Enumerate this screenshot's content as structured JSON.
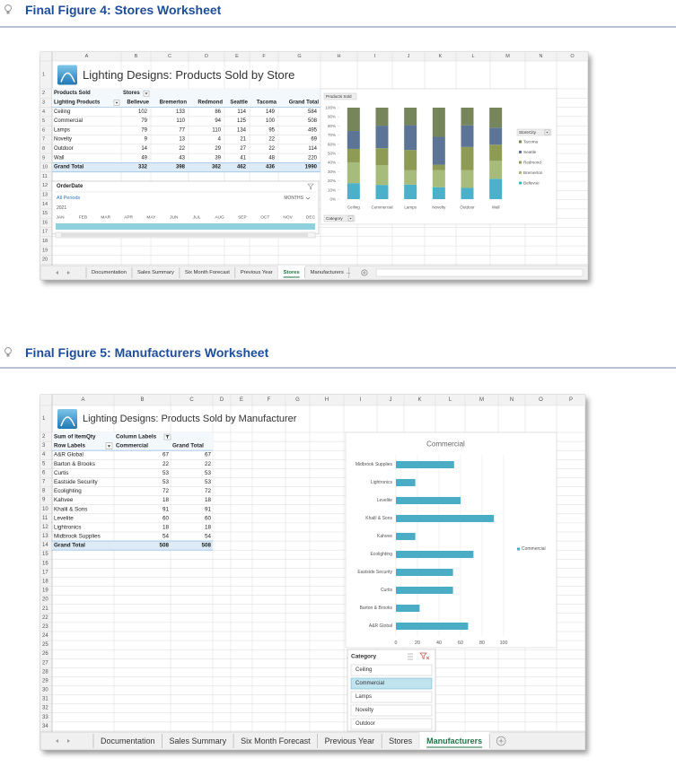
{
  "figure4": {
    "heading": "Final Figure 4: Stores Worksheet",
    "columns": [
      "A",
      "B",
      "C",
      "D",
      "E",
      "F",
      "G",
      "H",
      "I",
      "J",
      "K",
      "L",
      "M",
      "N",
      "O"
    ],
    "row_numbers": [
      1,
      2,
      3,
      4,
      5,
      6,
      7,
      8,
      9,
      10,
      11,
      12,
      13,
      14,
      15,
      16,
      17,
      18,
      19,
      20
    ],
    "title": "Lighting Designs: Products Sold by Store",
    "pivot": {
      "corner": "Products Sold",
      "column_field": "Stores",
      "row_field": "Lighting Products",
      "headers": [
        "Bellevue",
        "Bremerton",
        "Redmond",
        "Seattle",
        "Tacoma",
        "Grand Total"
      ],
      "rows": [
        {
          "label": "Ceiling",
          "values": [
            102,
            133,
            86,
            114,
            149,
            584
          ]
        },
        {
          "label": "Commercial",
          "values": [
            79,
            110,
            94,
            125,
            100,
            508
          ]
        },
        {
          "label": "Lamps",
          "values": [
            79,
            77,
            110,
            134,
            95,
            495
          ]
        },
        {
          "label": "Novelty",
          "values": [
            9,
            13,
            4,
            21,
            22,
            69
          ]
        },
        {
          "label": "Outdoor",
          "values": [
            14,
            22,
            29,
            27,
            22,
            114
          ]
        },
        {
          "label": "Wall",
          "values": [
            49,
            43,
            39,
            41,
            48,
            220
          ]
        }
      ],
      "total": {
        "label": "Grand Total",
        "values": [
          332,
          398,
          362,
          462,
          436,
          1990
        ]
      }
    },
    "timeline": {
      "title": "OrderDate",
      "period": "All Periods",
      "level": "MONTHS",
      "year": "2021",
      "months": [
        "JAN",
        "FEB",
        "MAR",
        "APR",
        "MAY",
        "JUN",
        "JUL",
        "AUG",
        "SEP",
        "OCT",
        "NOV",
        "DEC"
      ]
    },
    "chart": {
      "type": "bar",
      "stacking": "percent",
      "title": "Products Sold",
      "ylim": [
        0,
        100
      ],
      "yticks": [
        {
          "value": 0,
          "label": "0%"
        },
        {
          "value": 10,
          "label": "10%"
        },
        {
          "value": 20,
          "label": "20%"
        },
        {
          "value": 30,
          "label": "30%"
        },
        {
          "value": 40,
          "label": "40%"
        },
        {
          "value": 50,
          "label": "50%"
        },
        {
          "value": 60,
          "label": "60%"
        },
        {
          "value": 70,
          "label": "70%"
        },
        {
          "value": 80,
          "label": "80%"
        },
        {
          "value": 90,
          "label": "90%"
        },
        {
          "value": 100,
          "label": "100%"
        }
      ],
      "legend_title": "StoreCity",
      "filter_button": "Category",
      "series": [
        {
          "name": "Bellevue",
          "color": "#4bb0c9"
        },
        {
          "name": "Bremerton",
          "color": "#a7bc7a"
        },
        {
          "name": "Redmond",
          "color": "#8d9b55"
        },
        {
          "name": "Seattle",
          "color": "#5c7596"
        },
        {
          "name": "Tacoma",
          "color": "#76855a"
        }
      ]
    },
    "tabs": [
      {
        "label": "Documentation"
      },
      {
        "label": "Sales Summary"
      },
      {
        "label": "Six Month Forecast"
      },
      {
        "label": "Previous Year"
      },
      {
        "label": "Stores",
        "active": true
      },
      {
        "label": "Manufacturers"
      }
    ],
    "tab_overflow": "..."
  },
  "figure5": {
    "heading": "Final Figure 5: Manufacturers Worksheet",
    "columns": [
      "A",
      "B",
      "C",
      "D",
      "E",
      "F",
      "G",
      "H",
      "I",
      "J",
      "K",
      "L",
      "M",
      "N",
      "O",
      "P"
    ],
    "row_numbers": [
      1,
      2,
      3,
      4,
      5,
      6,
      7,
      8,
      9,
      10,
      11,
      12,
      13,
      14,
      15,
      16,
      17,
      18,
      19,
      20,
      21,
      22,
      23,
      24,
      25,
      26,
      27,
      28,
      29,
      30,
      31,
      32,
      33,
      34
    ],
    "title": "Lighting Designs: Products Sold by Manufacturer",
    "pivot": {
      "value_field": "Sum of ItemQty",
      "column_labels": "Column Labels",
      "row_labels": "Row Labels",
      "headers": [
        "Commercial",
        "Grand Total"
      ],
      "rows": [
        {
          "label": "A&R Global",
          "values": [
            67,
            67
          ]
        },
        {
          "label": "Barton & Brooks",
          "values": [
            22,
            22
          ]
        },
        {
          "label": "Curtis",
          "values": [
            53,
            53
          ]
        },
        {
          "label": "Eastside Security",
          "values": [
            53,
            53
          ]
        },
        {
          "label": "Ecolighting",
          "values": [
            72,
            72
          ]
        },
        {
          "label": "Kahvee",
          "values": [
            18,
            18
          ]
        },
        {
          "label": "Khalil & Sons",
          "values": [
            91,
            91
          ]
        },
        {
          "label": "Levelite",
          "values": [
            60,
            60
          ]
        },
        {
          "label": "Lightronics",
          "values": [
            18,
            18
          ]
        },
        {
          "label": "Midbrook Supplies",
          "values": [
            54,
            54
          ]
        }
      ],
      "total": {
        "label": "Grand Total",
        "values": [
          508,
          508
        ]
      }
    },
    "chart": {
      "type": "bar",
      "orientation": "horizontal",
      "title": "Commercial",
      "series_name": "Commercial",
      "color": "#4bacc6",
      "xlim": [
        0,
        100
      ],
      "xticks": [
        0,
        20,
        40,
        60,
        80,
        100
      ],
      "grid": true
    },
    "slicer": {
      "title": "Category",
      "items": [
        {
          "label": "Ceiling"
        },
        {
          "label": "Commercial",
          "selected": true
        },
        {
          "label": "Lamps"
        },
        {
          "label": "Novelty"
        },
        {
          "label": "Outdoor"
        }
      ]
    },
    "tabs": [
      {
        "label": "Documentation"
      },
      {
        "label": "Sales Summary"
      },
      {
        "label": "Six Month Forecast"
      },
      {
        "label": "Previous Year"
      },
      {
        "label": "Stores"
      },
      {
        "label": "Manufacturers",
        "active": true
      }
    ]
  }
}
